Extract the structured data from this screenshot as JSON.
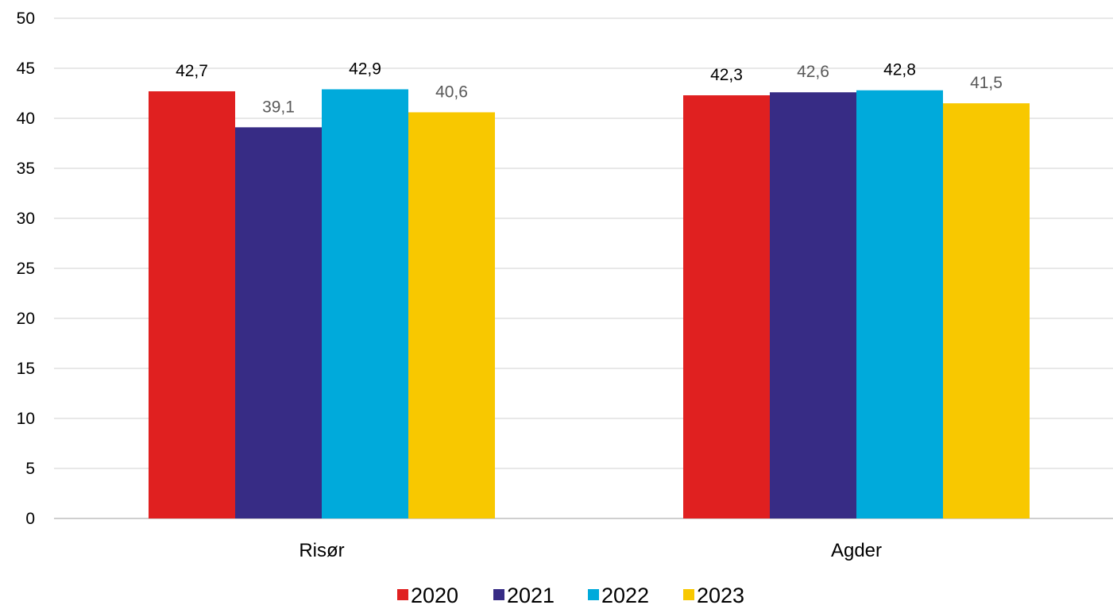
{
  "chart_data": {
    "type": "bar",
    "title": "",
    "xlabel": "",
    "ylabel": "",
    "categories": [
      "Risør",
      "Agder"
    ],
    "series": [
      {
        "name": "2020",
        "values": [
          42.7,
          42.3
        ],
        "labels": [
          "42,7",
          "42,3"
        ],
        "color": "#e02020",
        "label_colors": [
          "#000000",
          "#000000"
        ]
      },
      {
        "name": "2021",
        "values": [
          39.1,
          42.6
        ],
        "labels": [
          "39,1",
          "42,6"
        ],
        "color": "#372c85",
        "label_colors": [
          "#595959",
          "#595959"
        ]
      },
      {
        "name": "2022",
        "values": [
          42.9,
          42.8
        ],
        "labels": [
          "42,9",
          "42,8"
        ],
        "color": "#00aadb",
        "label_colors": [
          "#000000",
          "#000000"
        ]
      },
      {
        "name": "2023",
        "values": [
          40.6,
          41.5
        ],
        "labels": [
          "40,6",
          "41,5"
        ],
        "color": "#f8c800",
        "label_colors": [
          "#595959",
          "#595959"
        ]
      }
    ],
    "ylim": [
      0,
      50
    ],
    "yticks": [
      "0",
      "5",
      "10",
      "15",
      "20",
      "25",
      "30",
      "35",
      "40",
      "45",
      "50"
    ],
    "grid": true,
    "legend_position": "bottom"
  }
}
